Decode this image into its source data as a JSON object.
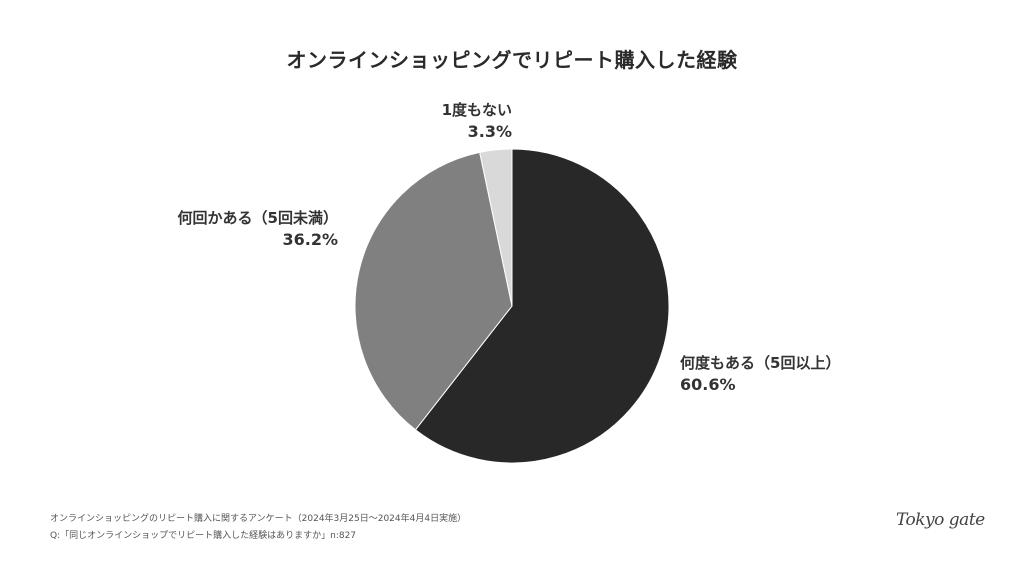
{
  "header": {
    "title": "オンラインショッピングでリピート購入した経験"
  },
  "chart_data": {
    "type": "pie",
    "title": "オンラインショッピングでリピート購入した経験",
    "categories": [
      "何度もある（5回以上）",
      "何回かある（5回未満）",
      "1度もない"
    ],
    "values": [
      60.6,
      36.2,
      3.3
    ],
    "unit": "%",
    "colors": [
      "#282828",
      "#808080",
      "#d9d9d9"
    ],
    "start_angle": "12 o'clock, clockwise",
    "legend": "none (direct labels)"
  },
  "labels": {
    "many": {
      "name": "何度もある（5回以上）",
      "pct": "60.6%"
    },
    "few": {
      "name": "何回かある（5回未満）",
      "pct": "36.2%"
    },
    "none": {
      "name": "1度もない",
      "pct": "3.3%"
    }
  },
  "footer": {
    "survey": "オンラインショッピングのリピート購入に関するアンケート（2024年3月25日〜2024年4月4日実施）",
    "question": "Q:「同じオンラインショップでリピート購入した経験はありますか」n:827"
  },
  "brand": {
    "logo": "Tokyo gate"
  }
}
